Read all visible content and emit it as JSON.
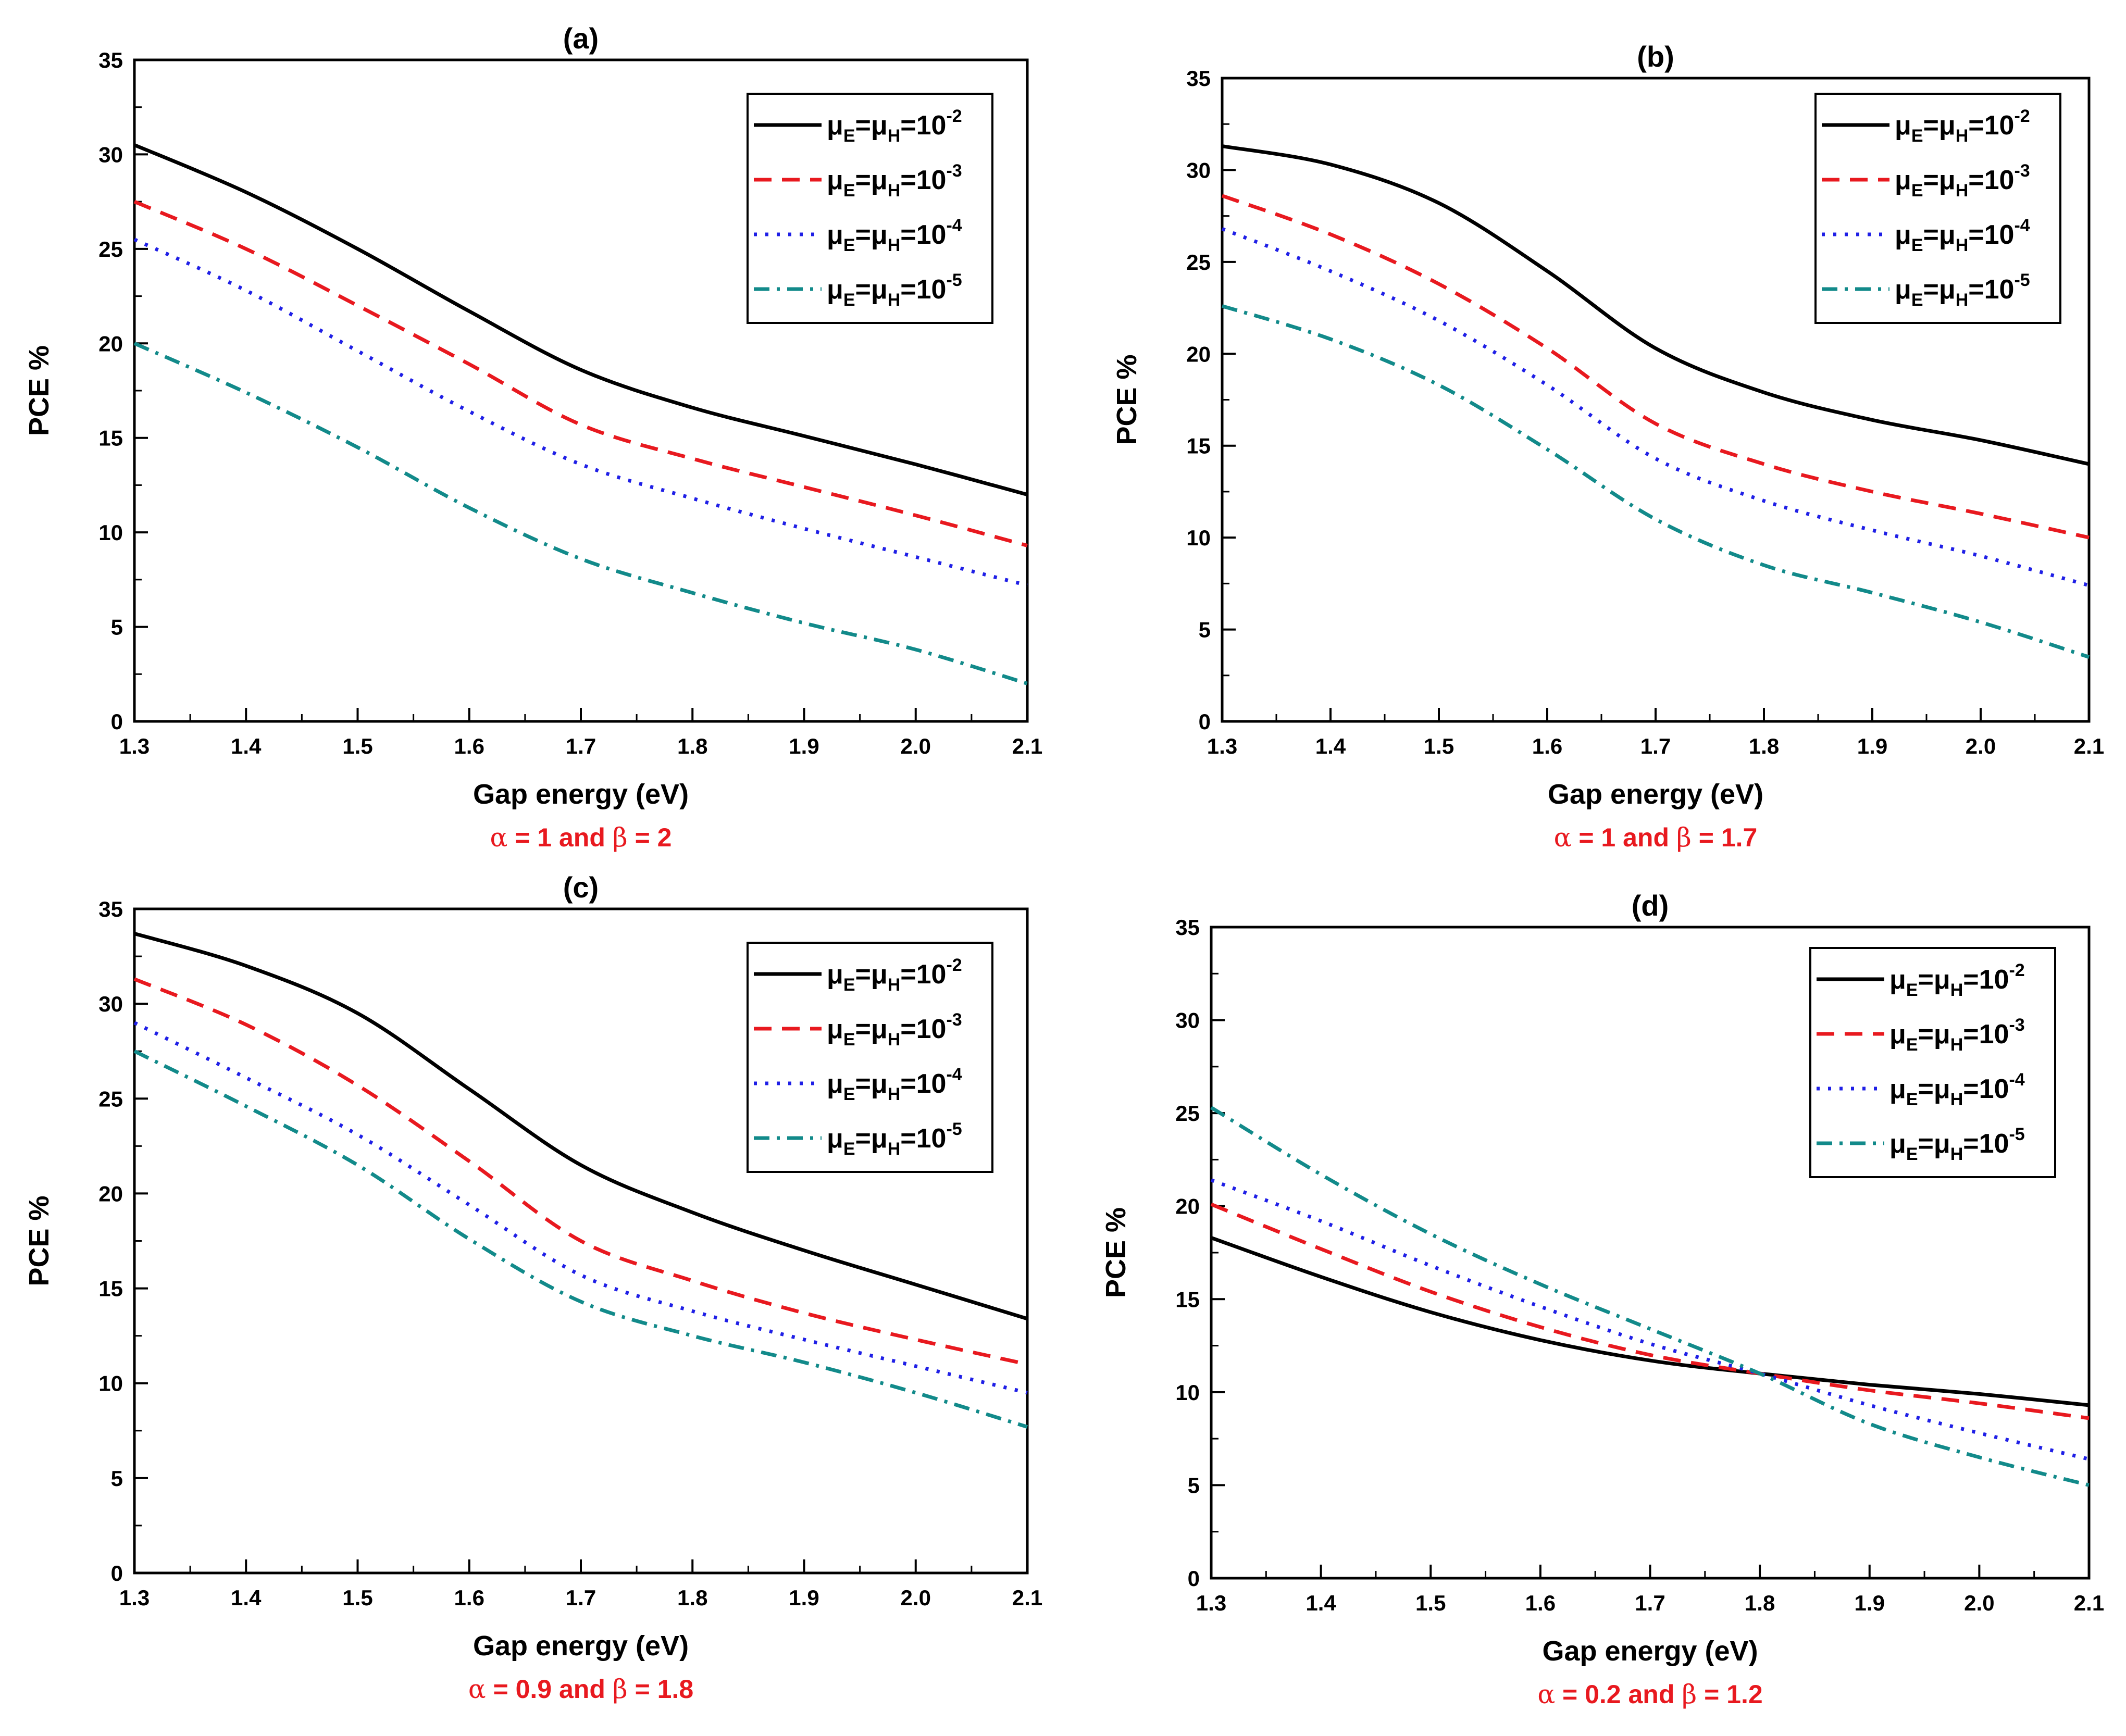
{
  "chart_data": [
    {
      "id": "a",
      "type": "line",
      "title": "(a)",
      "xlabel": "Gap energy (eV)",
      "ylabel": "PCE %",
      "caption_alpha": "1",
      "caption_beta": "2",
      "caption": "α =1 and β = 2",
      "xlim": [
        1.3,
        2.1
      ],
      "ylim": [
        0,
        35
      ],
      "xticks": [
        "1.3",
        "1.4",
        "1.5",
        "1.6",
        "1.7",
        "1.8",
        "1.9",
        "2.0",
        "2.1"
      ],
      "yticks": [
        "0",
        "5",
        "10",
        "15",
        "20",
        "25",
        "30",
        "35"
      ],
      "x": [
        1.3,
        1.4,
        1.5,
        1.6,
        1.7,
        1.8,
        1.9,
        2.0,
        2.1
      ],
      "series": [
        {
          "name": "μE=μH=10-2",
          "exp": "-2",
          "values": [
            30.5,
            28.0,
            25.0,
            21.7,
            18.6,
            16.6,
            15.1,
            13.6,
            12.0
          ]
        },
        {
          "name": "μE=μH=10-3",
          "exp": "-3",
          "values": [
            27.5,
            25.0,
            22.0,
            18.9,
            15.7,
            13.9,
            12.4,
            10.9,
            9.3
          ]
        },
        {
          "name": "μE=μH=10-4",
          "exp": "-4",
          "values": [
            25.5,
            22.8,
            19.6,
            16.4,
            13.6,
            11.8,
            10.2,
            8.7,
            7.2
          ]
        },
        {
          "name": "μE=μH=10-5",
          "exp": "-5",
          "values": [
            20.0,
            17.4,
            14.5,
            11.3,
            8.6,
            6.8,
            5.2,
            3.8,
            2.0
          ]
        }
      ]
    },
    {
      "id": "b",
      "type": "line",
      "title": "(b)",
      "xlabel": "Gap energy (eV)",
      "ylabel": "PCE %",
      "caption_alpha": "1",
      "caption_beta": "1.7",
      "caption": "α =1 and β = 1.7",
      "xlim": [
        1.3,
        2.1
      ],
      "ylim": [
        0,
        35
      ],
      "xticks": [
        "1.3",
        "1.4",
        "1.5",
        "1.6",
        "1.7",
        "1.8",
        "1.9",
        "2.0",
        "2.1"
      ],
      "yticks": [
        "0",
        "5",
        "10",
        "15",
        "20",
        "25",
        "30",
        "35"
      ],
      "x": [
        1.3,
        1.4,
        1.5,
        1.6,
        1.7,
        1.8,
        1.9,
        2.0,
        2.1
      ],
      "series": [
        {
          "name": "μE=μH=10-2",
          "exp": "-2",
          "values": [
            31.3,
            30.3,
            28.2,
            24.5,
            20.3,
            17.9,
            16.4,
            15.3,
            14.0
          ]
        },
        {
          "name": "μE=μH=10-3",
          "exp": "-3",
          "values": [
            28.6,
            26.5,
            23.8,
            20.3,
            16.2,
            14.0,
            12.5,
            11.3,
            10.0
          ]
        },
        {
          "name": "μE=μH=10-4",
          "exp": "-4",
          "values": [
            26.8,
            24.5,
            21.8,
            18.3,
            14.3,
            12.0,
            10.4,
            9.0,
            7.4
          ]
        },
        {
          "name": "μE=μH=10-5",
          "exp": "-5",
          "values": [
            22.6,
            20.8,
            18.3,
            14.8,
            11.0,
            8.5,
            7.0,
            5.4,
            3.5
          ]
        }
      ]
    },
    {
      "id": "c",
      "type": "line",
      "title": "(c)",
      "xlabel": "Gap energy (eV)",
      "ylabel": "PCE %",
      "caption_alpha": "0.9",
      "caption_beta": "1.8",
      "caption": "α = 0.9 and β = 1.8",
      "xlim": [
        1.3,
        2.1
      ],
      "ylim": [
        0,
        35
      ],
      "xticks": [
        "1.3",
        "1.4",
        "1.5",
        "1.6",
        "1.7",
        "1.8",
        "1.9",
        "2.0",
        "2.1"
      ],
      "yticks": [
        "0",
        "5",
        "10",
        "15",
        "20",
        "25",
        "30",
        "35"
      ],
      "x": [
        1.3,
        1.4,
        1.5,
        1.6,
        1.7,
        1.8,
        1.9,
        2.0,
        2.1
      ],
      "series": [
        {
          "name": "μE=μH=10-2",
          "exp": "-2",
          "values": [
            33.7,
            32.0,
            29.5,
            25.5,
            21.5,
            19.0,
            17.0,
            15.2,
            13.4
          ]
        },
        {
          "name": "μE=μH=10-3",
          "exp": "-3",
          "values": [
            31.3,
            28.9,
            25.7,
            21.7,
            17.5,
            15.4,
            13.7,
            12.3,
            11.0
          ]
        },
        {
          "name": "μE=μH=10-4",
          "exp": "-4",
          "values": [
            29.0,
            26.1,
            23.1,
            19.4,
            15.7,
            13.8,
            12.3,
            10.9,
            9.5
          ]
        },
        {
          "name": "μE=μH=10-5",
          "exp": "-5",
          "values": [
            27.5,
            24.6,
            21.5,
            17.6,
            14.3,
            12.5,
            11.1,
            9.5,
            7.7
          ]
        }
      ]
    },
    {
      "id": "d",
      "type": "line",
      "title": "(d)",
      "xlabel": "Gap energy (eV)",
      "ylabel": "PCE %",
      "caption_alpha": "0.2",
      "caption_beta": "1.2",
      "caption": "α =0.2 and β = 1.2",
      "xlim": [
        1.3,
        2.1
      ],
      "ylim": [
        0,
        35
      ],
      "xticks": [
        "1.3",
        "1.4",
        "1.5",
        "1.6",
        "1.7",
        "1.8",
        "1.9",
        "2.0",
        "2.1"
      ],
      "yticks": [
        "0",
        "5",
        "10",
        "15",
        "20",
        "25",
        "30",
        "35"
      ],
      "x": [
        1.3,
        1.4,
        1.5,
        1.6,
        1.7,
        1.8,
        1.9,
        2.0,
        2.1
      ],
      "series": [
        {
          "name": "μE=μH=10-2",
          "exp": "-2",
          "values": [
            18.3,
            16.2,
            14.3,
            12.8,
            11.7,
            11.0,
            10.4,
            9.9,
            9.3
          ]
        },
        {
          "name": "μE=μH=10-3",
          "exp": "-3",
          "values": [
            20.1,
            17.7,
            15.4,
            13.5,
            12.0,
            11.0,
            10.1,
            9.4,
            8.6
          ]
        },
        {
          "name": "μE=μH=10-4",
          "exp": "-4",
          "values": [
            21.4,
            19.2,
            16.8,
            14.6,
            12.6,
            11.0,
            9.3,
            7.8,
            6.4
          ]
        },
        {
          "name": "μE=μH=10-5",
          "exp": "-5",
          "values": [
            25.3,
            21.7,
            18.5,
            15.8,
            13.4,
            11.0,
            8.3,
            6.5,
            5.0
          ]
        }
      ]
    }
  ],
  "style": {
    "colors": [
      "#000000",
      "#e8191f",
      "#1f1fe6",
      "#128a8a"
    ],
    "dashes": [
      "none",
      "34,20",
      "6,16",
      "30,14,6,14"
    ]
  }
}
